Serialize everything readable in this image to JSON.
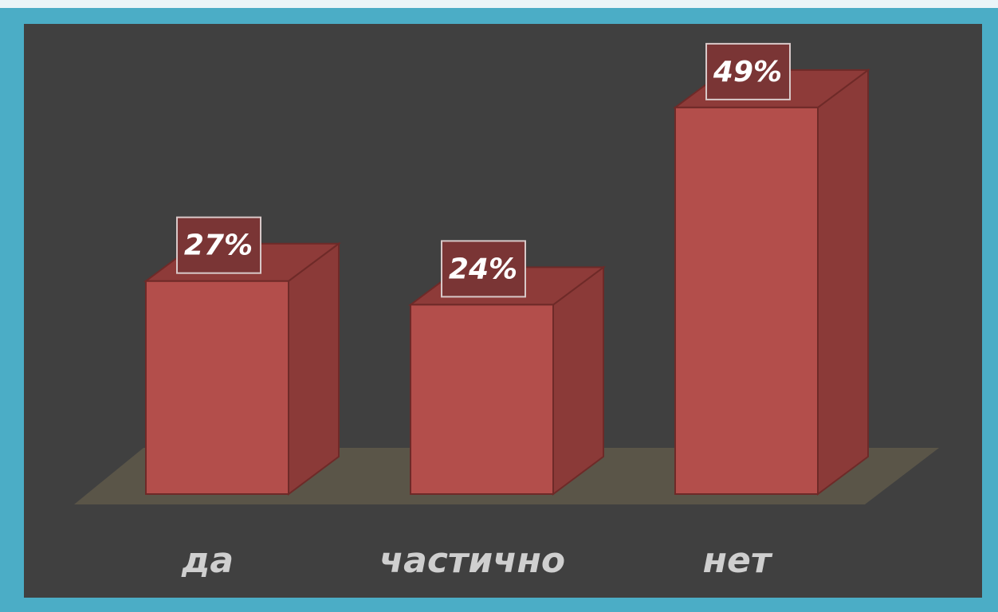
{
  "chart_data": {
    "type": "bar3d",
    "categories": [
      "да",
      "частично",
      "нет"
    ],
    "values": [
      27,
      24,
      49
    ],
    "value_labels": [
      "27%",
      "24%",
      "49%"
    ],
    "color": "#b34e4b"
  }
}
